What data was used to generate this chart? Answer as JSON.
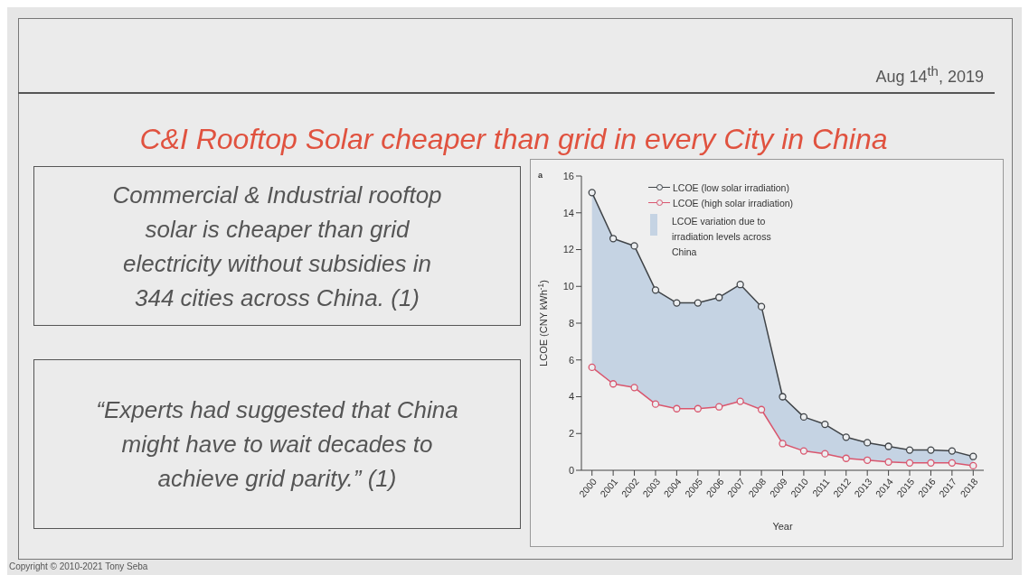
{
  "chart_data": {
    "type": "line",
    "title": "C&I Rooftop Solar cheaper than grid in every City in China",
    "subtitle": "Aug 14$^{th}$, 2019",
    "xlabel": "Year",
    "ylabel": "LCOE (CNY kWh$^{-1}$)",
    "annotations": [
      "Commercial & Industrial rooftop solar is cheaper than grid electricity without subsidies in 344 cities across China. (1)",
      "“Experts had suggested that China might have to wait decades to achieve grid parity.” (1)",
      "Copyright © 2010-2021 Tony Seba",
      "a",
      "LCOE variation due to irradiation levels across China"
    ],
    "categories": [
      "2000",
      "2001",
      "2002",
      "2003",
      "2004",
      "2005",
      "2006",
      "2007",
      "2008",
      "2009",
      "2010",
      "2011",
      "2012",
      "2013",
      "2014",
      "2015",
      "2016",
      "2017",
      "2018"
    ],
    "series": [
      {
        "name": "LCOE (low solar irradiation)",
        "color": "#404448",
        "values": [
          15.1,
          12.6,
          12.2,
          9.8,
          9.1,
          9.1,
          9.4,
          10.1,
          8.9,
          4.0,
          2.9,
          2.5,
          1.8,
          1.5,
          1.3,
          1.1,
          1.1,
          1.05,
          0.75
        ],
        "lower": [
          5.6,
          4.7,
          4.5,
          3.6,
          3.35,
          3.35,
          3.45,
          3.75,
          3.3,
          1.45,
          1.05,
          0.9,
          0.65,
          0.55,
          0.45,
          0.4,
          0.4,
          0.4,
          0.25
        ],
        "upper": [
          15.1,
          12.6,
          12.2,
          9.8,
          9.1,
          9.1,
          9.4,
          10.1,
          8.9,
          4.0,
          2.9,
          2.5,
          1.8,
          1.5,
          1.3,
          1.1,
          1.1,
          1.05,
          0.75
        ]
      },
      {
        "name": "LCOE (high solar irradiation)",
        "color": "#d9566e",
        "values": [
          5.6,
          4.7,
          4.5,
          3.6,
          3.35,
          3.35,
          3.45,
          3.75,
          3.3,
          1.45,
          1.05,
          0.9,
          0.65,
          0.55,
          0.45,
          0.4,
          0.4,
          0.4,
          0.25
        ]
      }
    ],
    "ylim": [
      0,
      16
    ],
    "yticks": [
      0,
      2,
      4,
      6,
      8,
      10,
      12,
      14,
      16
    ],
    "legend": "top left",
    "marker": "circle",
    "line_style": "solid"
  }
}
